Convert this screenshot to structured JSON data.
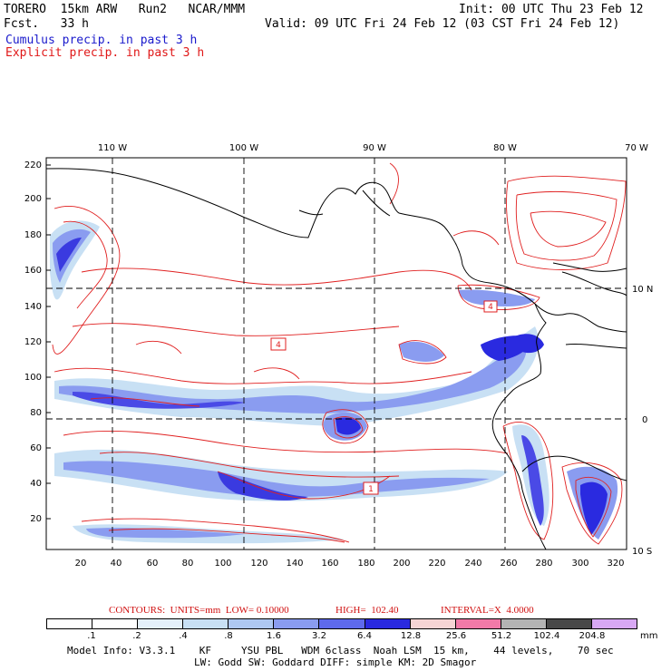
{
  "header": {
    "model": "TORERO  15km ARW   Run2   NCAR/MMM",
    "init": "Init: 00 UTC Thu 23 Feb 12",
    "fcst": "Fcst.   33 h",
    "valid": "Valid: 09 UTC Fri 24 Feb 12 (03 CST Fri 24 Feb 12)",
    "cumulus": "Cumulus precip. in past 3 h",
    "explicit": "Explicit precip. in past 3 h"
  },
  "map": {
    "lon_labels": [
      "110 W",
      "100 W",
      "90 W",
      "80 W",
      "70 W"
    ],
    "lat_labels": [
      "10 N",
      "0",
      "10 S"
    ],
    "y_ticks": [
      "220",
      "200",
      "180",
      "160",
      "140",
      "120",
      "100",
      "80",
      "60",
      "40",
      "20"
    ],
    "x_ticks": [
      "20",
      "40",
      "60",
      "80",
      "100",
      "120",
      "140",
      "160",
      "180",
      "200",
      "220",
      "240",
      "260",
      "280",
      "300",
      "320"
    ],
    "markers": [
      "4",
      "1",
      "4"
    ],
    "colors": {
      "frame": "#000000",
      "coast": "#000000",
      "contour": "#e02020",
      "shade_light": "#c8dcf6",
      "shade_mid": "#8a9cf0",
      "shade_dark": "#2a2ae0"
    }
  },
  "contour_info": {
    "label": "CONTOURS:  UNITS=mm  LOW= 0.10000",
    "high": "HIGH=  102.40",
    "interval": "INTERVAL=X  4.0000"
  },
  "legend": {
    "labels": [
      ".1",
      ".2",
      ".4",
      ".8",
      "1.6",
      "3.2",
      "6.4",
      "12.8",
      "25.6",
      "51.2",
      "102.4",
      "204.8"
    ],
    "unit": "mm",
    "colors": [
      "#ffffff",
      "#ffffff",
      "#e4f0fa",
      "#c8e0f4",
      "#aec8f2",
      "#8a9cf0",
      "#5e6aec",
      "#2a2ae0",
      "#f6d4d4",
      "#f27aa8",
      "#b4b4b4",
      "#484848",
      "#d8a8f4"
    ]
  },
  "footer": {
    "line1": "Model Info: V3.3.1    KF     YSU PBL   WDM 6class  Noah LSM  15 km,    44 levels,    70 sec",
    "line2": "LW: Godd SW: Goddard DIFF: simple KM: 2D Smagor"
  }
}
